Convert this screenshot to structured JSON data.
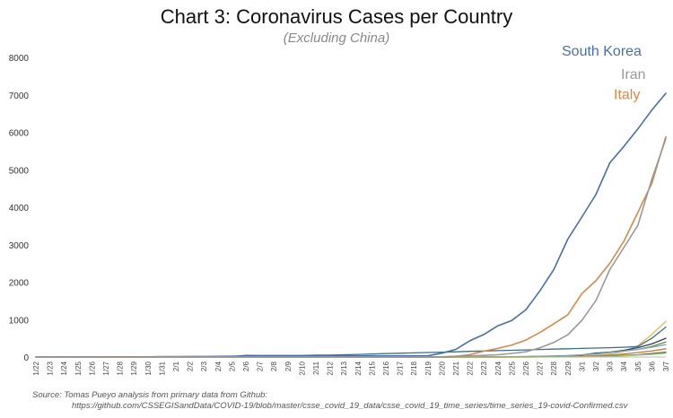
{
  "title": "Chart 3: Coronavirus Cases per Country",
  "subtitle": "(Excluding China)",
  "source_line1": "Source: Tomas Pueyo analysis from primary data from Github:",
  "source_line2": "https://github.com/CSSEGISandData/COVID-19/blob/master/csse_covid_19_data/csse_covid_19_time_series/time_series_19-covid-Confirmed.csv",
  "chart_data": {
    "type": "line",
    "title": "Chart 3: Coronavirus Cases per Country",
    "subtitle": "(Excluding China)",
    "xlabel": "",
    "ylabel": "",
    "ylim": [
      0,
      8000
    ],
    "yticks": [
      0,
      1000,
      2000,
      3000,
      4000,
      5000,
      6000,
      7000,
      8000
    ],
    "grid": false,
    "x": [
      "1/22",
      "1/23",
      "1/24",
      "1/25",
      "1/26",
      "1/27",
      "1/28",
      "1/29",
      "1/30",
      "1/31",
      "2/1",
      "2/2",
      "2/3",
      "2/4",
      "2/5",
      "2/6",
      "2/7",
      "2/8",
      "2/9",
      "2/10",
      "2/11",
      "2/12",
      "2/13",
      "2/14",
      "2/15",
      "2/16",
      "2/17",
      "2/18",
      "2/19",
      "2/20",
      "2/21",
      "2/22",
      "2/23",
      "2/24",
      "2/25",
      "2/26",
      "2/27",
      "2/28",
      "2/29",
      "3/1",
      "3/2",
      "3/3",
      "3/4",
      "3/5",
      "3/6",
      "3/7"
    ],
    "series": [
      {
        "name": "South Korea",
        "color": "#4a6fa5",
        "labeled": true,
        "values": [
          1,
          1,
          2,
          2,
          3,
          4,
          4,
          4,
          4,
          11,
          12,
          15,
          15,
          16,
          19,
          23,
          24,
          24,
          25,
          27,
          28,
          28,
          28,
          28,
          28,
          29,
          30,
          31,
          31,
          104,
          204,
          433,
          602,
          833,
          977,
          1261,
          1766,
          2337,
          3150,
          3736,
          4335,
          5186,
          5621,
          6088,
          6593,
          7041
        ]
      },
      {
        "name": "Italy",
        "color": "#d4894a",
        "labeled": true,
        "values": [
          0,
          0,
          0,
          0,
          0,
          0,
          0,
          0,
          0,
          2,
          2,
          2,
          2,
          2,
          2,
          2,
          3,
          3,
          3,
          3,
          3,
          3,
          3,
          3,
          3,
          3,
          3,
          3,
          3,
          3,
          20,
          62,
          155,
          229,
          322,
          453,
          655,
          888,
          1128,
          1694,
          2036,
          2502,
          3089,
          3858,
          4636,
          5883
        ]
      },
      {
        "name": "Iran",
        "color": "#999999",
        "labeled": true,
        "values": [
          0,
          0,
          0,
          0,
          0,
          0,
          0,
          0,
          0,
          0,
          0,
          0,
          0,
          0,
          0,
          0,
          0,
          0,
          0,
          0,
          0,
          0,
          0,
          0,
          0,
          0,
          0,
          0,
          2,
          5,
          18,
          28,
          43,
          61,
          95,
          139,
          245,
          388,
          593,
          978,
          1501,
          2336,
          2922,
          3513,
          4747,
          5823
        ]
      },
      {
        "name": "",
        "color": "#e2b84d",
        "labeled": false,
        "values": [
          0,
          0,
          0,
          0,
          0,
          0,
          0,
          0,
          0,
          0,
          0,
          0,
          0,
          0,
          0,
          0,
          0,
          0,
          0,
          0,
          0,
          0,
          0,
          0,
          0,
          0,
          0,
          0,
          0,
          0,
          0,
          0,
          0,
          0,
          0,
          0,
          2,
          5,
          10,
          20,
          40,
          80,
          150,
          300,
          600,
          950
        ]
      },
      {
        "name": "",
        "color": "#3b6e8f",
        "labeled": false,
        "values": [
          2,
          2,
          2,
          2,
          3,
          4,
          4,
          7,
          10,
          10,
          10,
          10,
          10,
          10,
          15,
          45,
          40,
          40,
          40,
          40,
          50,
          50,
          60,
          70,
          80,
          90,
          100,
          110,
          120,
          130,
          140,
          150,
          160,
          170,
          180,
          190,
          200,
          210,
          220,
          230,
          240,
          250,
          260,
          280,
          500,
          800
        ]
      },
      {
        "name": "",
        "color": "#6b8e3a",
        "labeled": false,
        "values": [
          0,
          0,
          0,
          0,
          0,
          0,
          0,
          0,
          0,
          0,
          0,
          0,
          0,
          0,
          0,
          0,
          0,
          0,
          0,
          0,
          0,
          0,
          0,
          0,
          0,
          0,
          0,
          0,
          0,
          0,
          1,
          2,
          3,
          5,
          8,
          12,
          18,
          26,
          38,
          57,
          100,
          130,
          160,
          200,
          280,
          400
        ]
      },
      {
        "name": "",
        "color": "#2f3e55",
        "labeled": false,
        "values": [
          0,
          0,
          0,
          0,
          0,
          0,
          0,
          0,
          0,
          0,
          0,
          0,
          0,
          0,
          0,
          0,
          0,
          0,
          0,
          0,
          0,
          0,
          0,
          0,
          0,
          0,
          0,
          0,
          0,
          0,
          0,
          0,
          0,
          0,
          5,
          10,
          15,
          20,
          30,
          50,
          100,
          130,
          180,
          250,
          350,
          500
        ]
      },
      {
        "name": "",
        "color": "#7fa6c9",
        "labeled": false,
        "values": [
          0,
          0,
          0,
          0,
          0,
          0,
          0,
          0,
          0,
          0,
          0,
          0,
          0,
          0,
          0,
          0,
          0,
          0,
          0,
          0,
          0,
          0,
          0,
          0,
          0,
          0,
          0,
          0,
          0,
          0,
          0,
          2,
          4,
          6,
          8,
          12,
          18,
          25,
          35,
          60,
          80,
          120,
          160,
          200,
          260,
          330
        ]
      },
      {
        "name": "",
        "color": "#c77b3a",
        "labeled": false,
        "values": [
          0,
          0,
          0,
          0,
          0,
          0,
          0,
          0,
          0,
          0,
          0,
          0,
          0,
          0,
          0,
          0,
          0,
          0,
          0,
          0,
          0,
          0,
          0,
          0,
          0,
          0,
          0,
          0,
          0,
          0,
          0,
          0,
          0,
          0,
          1,
          3,
          5,
          8,
          12,
          20,
          30,
          50,
          80,
          120,
          160,
          220
        ]
      },
      {
        "name": "",
        "color": "#5a5a5a",
        "labeled": false,
        "values": [
          0,
          0,
          0,
          0,
          0,
          0,
          0,
          0,
          0,
          0,
          0,
          0,
          0,
          0,
          0,
          0,
          0,
          0,
          0,
          0,
          0,
          0,
          0,
          0,
          0,
          0,
          0,
          0,
          0,
          0,
          0,
          0,
          0,
          0,
          0,
          1,
          2,
          4,
          8,
          12,
          18,
          28,
          40,
          60,
          90,
          130
        ]
      },
      {
        "name": "",
        "color": "#a6c46b",
        "labeled": false,
        "values": [
          0,
          0,
          0,
          0,
          0,
          0,
          0,
          0,
          0,
          0,
          0,
          0,
          0,
          0,
          0,
          0,
          0,
          0,
          0,
          0,
          0,
          0,
          0,
          0,
          0,
          0,
          0,
          0,
          0,
          0,
          0,
          0,
          0,
          0,
          0,
          0,
          1,
          2,
          4,
          8,
          14,
          20,
          30,
          50,
          70,
          100
        ]
      }
    ]
  }
}
